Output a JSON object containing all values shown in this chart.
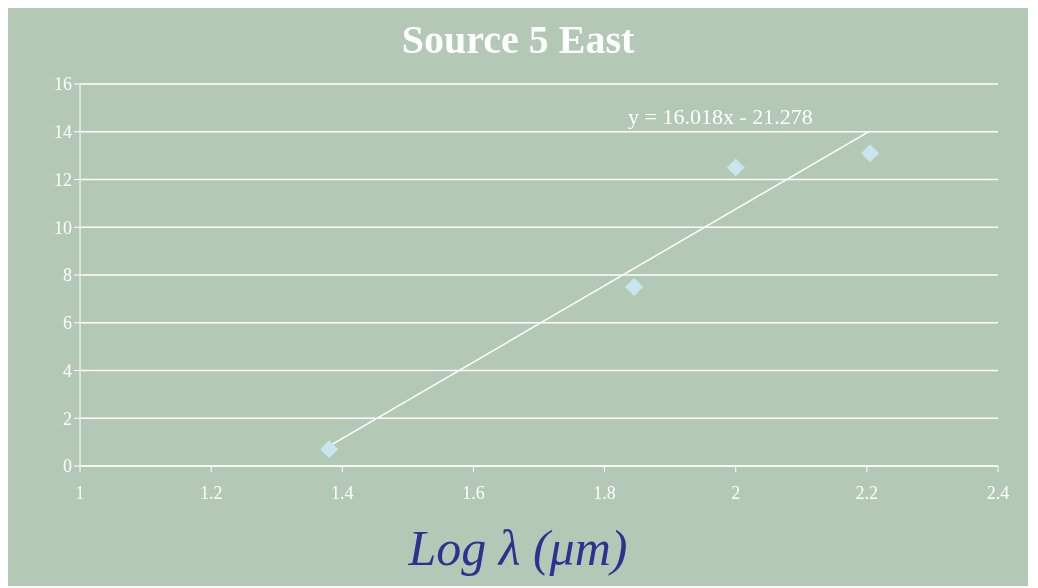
{
  "chart_data": {
    "type": "scatter",
    "title": "Source 5 East",
    "xlabel": "Log λ (μm)",
    "annotations": [
      "y = 16.018x - 21.278"
    ],
    "x": [
      1.38,
      1.845,
      2.0,
      2.205
    ],
    "series": [
      {
        "color": "#c8e6ee",
        "values": [
          0.7,
          7.5,
          12.5,
          13.1
        ],
        "marker": "diamond"
      },
      {
        "type": "line",
        "color": "#ffffff",
        "x": [
          1.38,
          2.205
        ],
        "values": [
          0.83,
          14.04
        ],
        "line_style": "solid",
        "marker": "none"
      }
    ],
    "xlim": [
      1,
      2.4
    ],
    "xticks": [
      1,
      1.2,
      1.4,
      1.6,
      1.8,
      2,
      2.2,
      2.4
    ],
    "ylim": [
      0,
      16
    ],
    "yticks": [
      0,
      2,
      4,
      6,
      8,
      10,
      12,
      14,
      16
    ],
    "grid": "y"
  }
}
